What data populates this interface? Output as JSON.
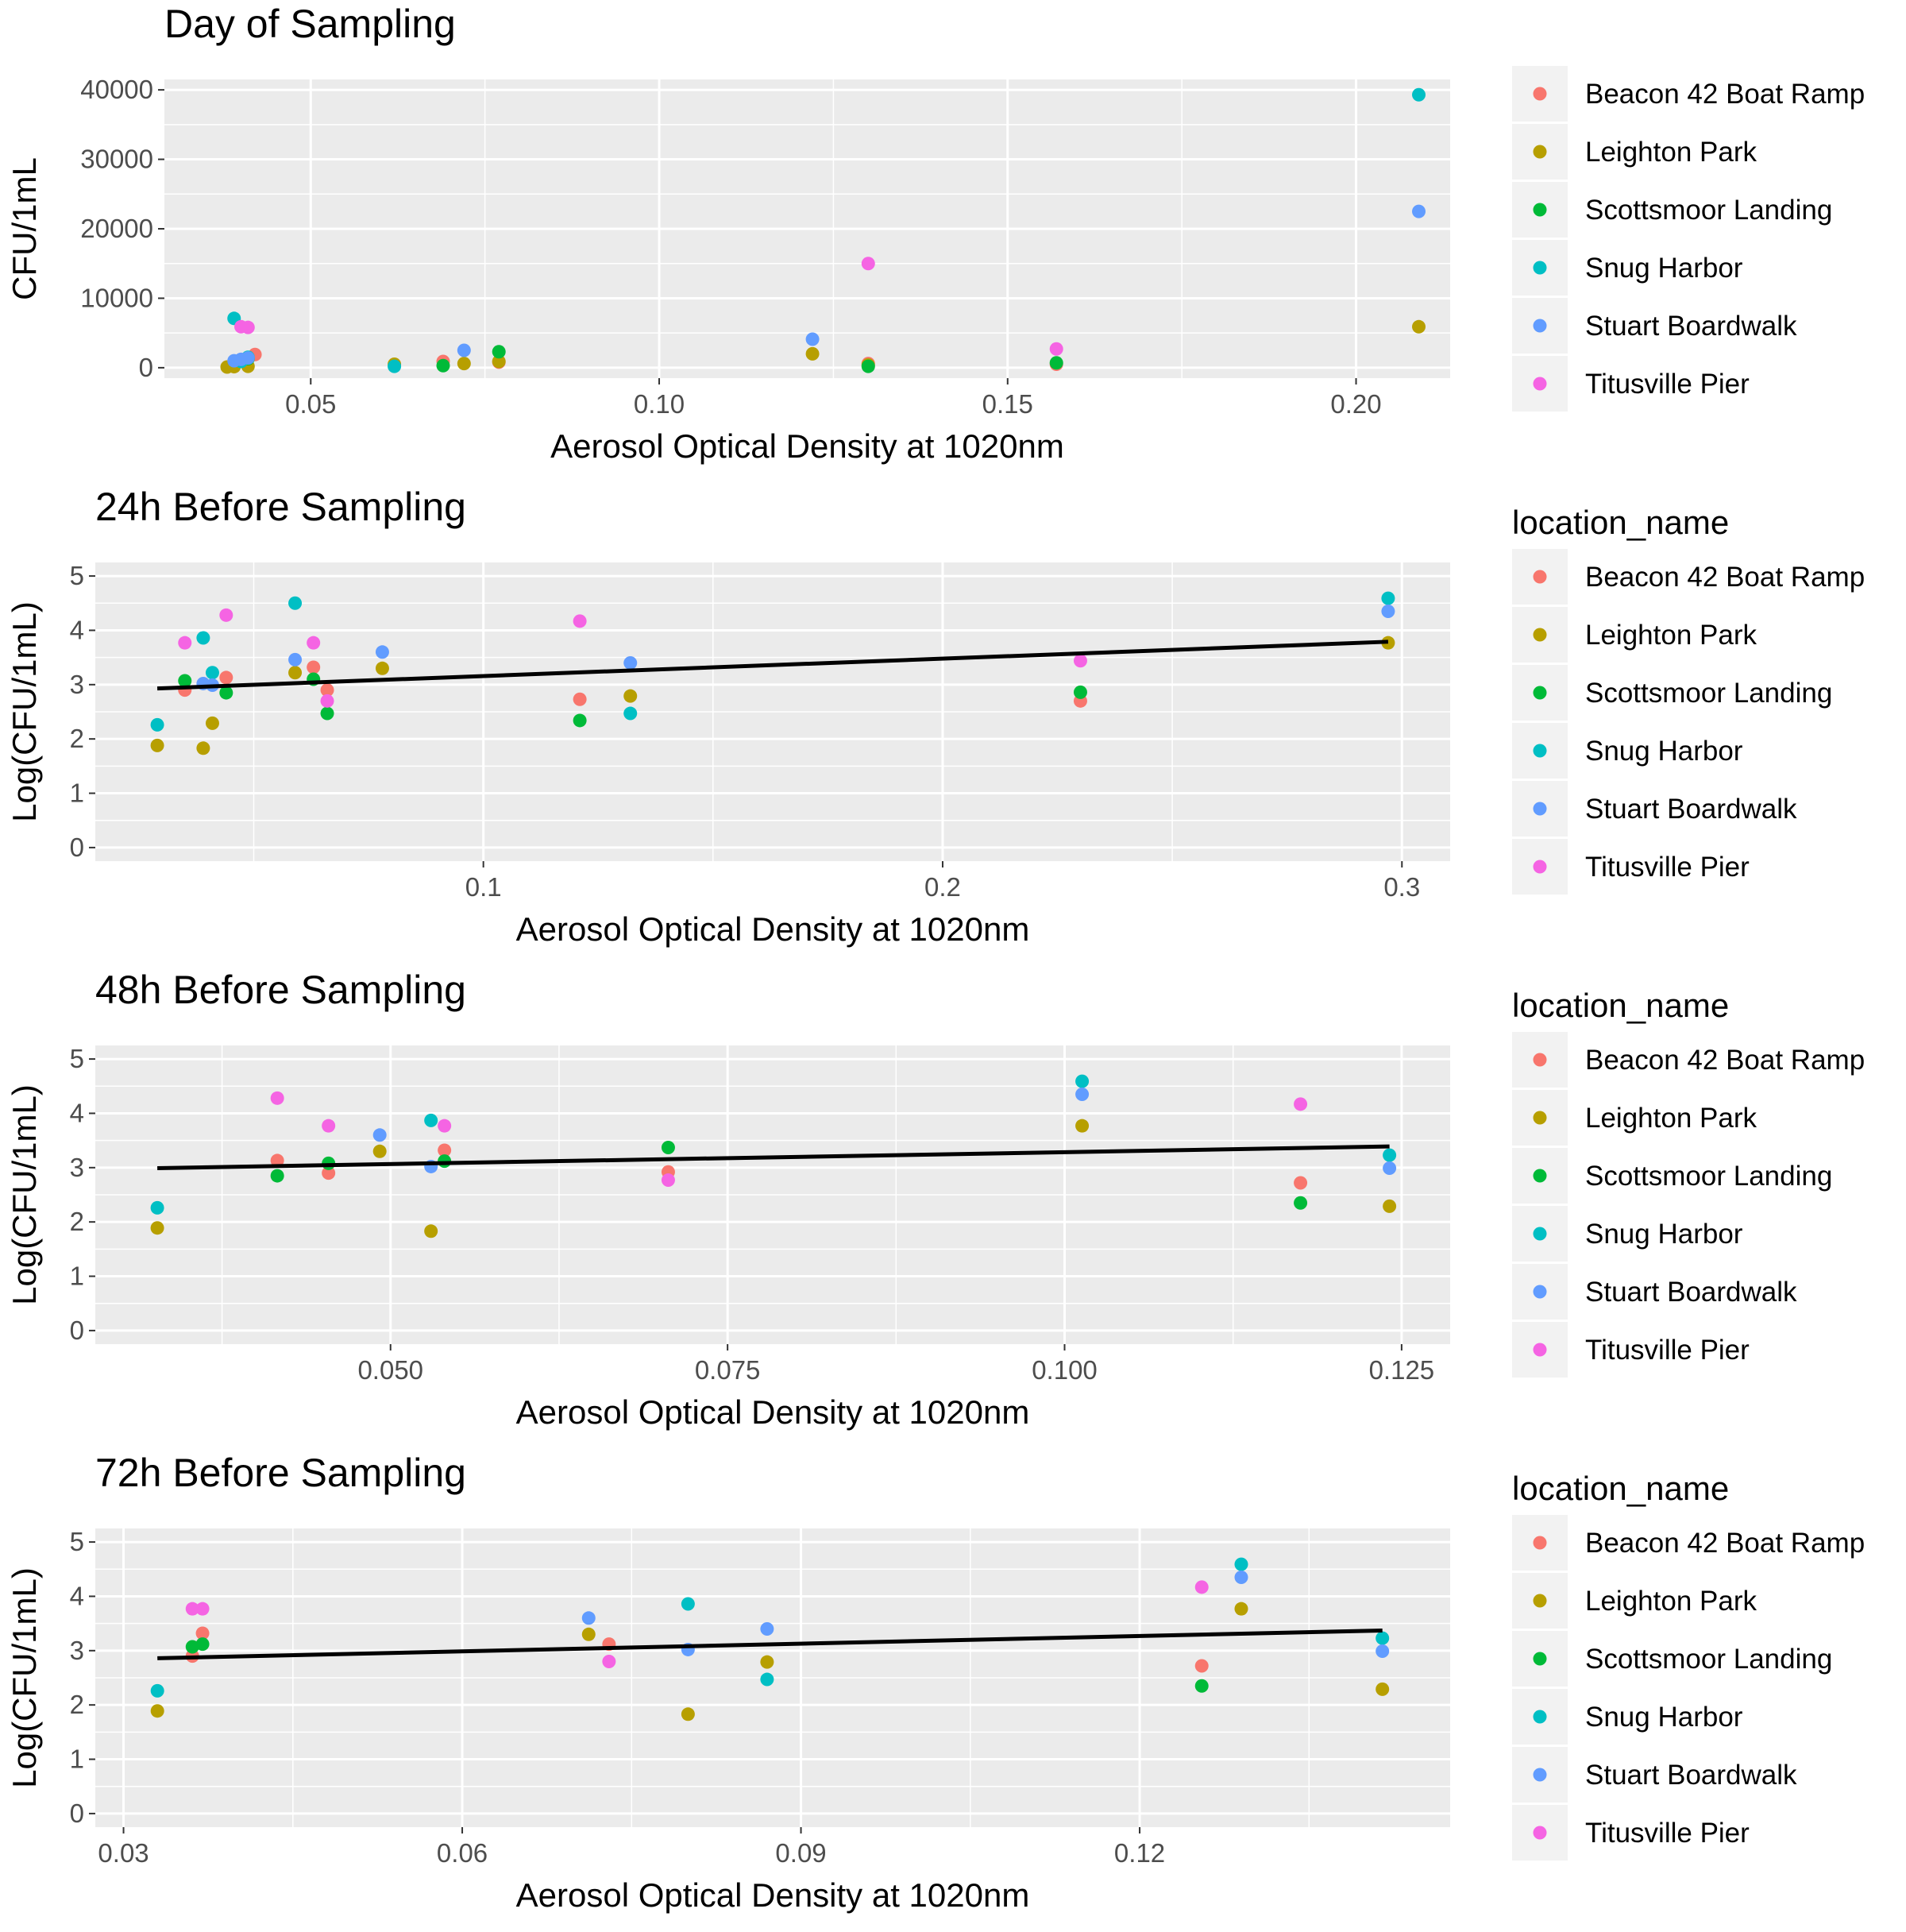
{
  "colors": {
    "Beacon 42 Boat Ramp": "#F8766D",
    "Leighton Park": "#B79F00",
    "Scottsmoor Landing": "#00BA38",
    "Snug Harbor": "#00BFC4",
    "Stuart Boardwalk": "#619CFF",
    "Titusville Pier": "#F564E3",
    "panel_background": "#EBEBEB",
    "grid": "#FFFFFF",
    "trend_line": "#000000"
  },
  "legend": {
    "title": "location_name",
    "entries": [
      "Beacon 42 Boat Ramp",
      "Leighton Park",
      "Scottsmoor Landing",
      "Snug Harbor",
      "Stuart Boardwalk",
      "Titusville Pier"
    ],
    "placement": "right"
  },
  "chart_data": [
    {
      "type": "scatter",
      "title": "Day of Sampling",
      "xlabel": "Aerosol Optical Density at 1020nm",
      "ylabel": "CFU/1mL",
      "xlim": [
        0.029,
        0.2135
      ],
      "ylim": [
        -1500,
        41500
      ],
      "xticks": [
        0.05,
        0.1,
        0.15,
        0.2
      ],
      "xtick_labels": [
        "0.05",
        "0.10",
        "0.15",
        "0.20"
      ],
      "yticks": [
        0,
        10000,
        20000,
        30000,
        40000
      ],
      "ytick_labels": [
        "0",
        "10000",
        "20000",
        "30000",
        "40000"
      ],
      "legend_title_shown": false,
      "grid": true,
      "series": [
        {
          "name": "Beacon 42 Boat Ramp",
          "points": [
            [
              0.039,
              300
            ],
            [
              0.042,
              1900
            ],
            [
              0.069,
              900
            ],
            [
              0.077,
              800
            ],
            [
              0.13,
              600
            ],
            [
              0.157,
              500
            ]
          ]
        },
        {
          "name": "Leighton Park",
          "points": [
            [
              0.038,
              100
            ],
            [
              0.039,
              150
            ],
            [
              0.041,
              200
            ],
            [
              0.062,
              500
            ],
            [
              0.072,
              600
            ],
            [
              0.077,
              900
            ],
            [
              0.122,
              2000
            ],
            [
              0.13,
              400
            ],
            [
              0.209,
              5900
            ]
          ]
        },
        {
          "name": "Scottsmoor Landing",
          "points": [
            [
              0.041,
              1300
            ],
            [
              0.069,
              300
            ],
            [
              0.077,
              2300
            ],
            [
              0.13,
              200
            ],
            [
              0.157,
              700
            ]
          ]
        },
        {
          "name": "Snug Harbor",
          "points": [
            [
              0.039,
              7100
            ],
            [
              0.04,
              900
            ],
            [
              0.041,
              1500
            ],
            [
              0.062,
              200
            ],
            [
              0.209,
              39300
            ]
          ]
        },
        {
          "name": "Stuart Boardwalk",
          "points": [
            [
              0.039,
              1000
            ],
            [
              0.04,
              1200
            ],
            [
              0.041,
              1400
            ],
            [
              0.072,
              2500
            ],
            [
              0.122,
              4100
            ],
            [
              0.209,
              22500
            ]
          ]
        },
        {
          "name": "Titusville Pier",
          "points": [
            [
              0.04,
              5900
            ],
            [
              0.041,
              5800
            ],
            [
              0.13,
              15000
            ],
            [
              0.157,
              2700
            ]
          ]
        }
      ]
    },
    {
      "type": "scatter",
      "title": "24h Before Sampling",
      "xlabel": "Aerosol Optical Density at 1020nm",
      "ylabel": "Log(CFU/1mL)",
      "xlim": [
        0.0155,
        0.3105
      ],
      "ylim": [
        -0.25,
        5.25
      ],
      "xticks": [
        0.1,
        0.2,
        0.3
      ],
      "xtick_labels": [
        "0.1",
        "0.2",
        "0.3"
      ],
      "yticks": [
        0,
        1,
        2,
        3,
        4,
        5
      ],
      "ytick_labels": [
        "0",
        "1",
        "2",
        "3",
        "4",
        "5"
      ],
      "legend_title_shown": true,
      "grid": true,
      "trend_line": [
        [
          0.029,
          2.93
        ],
        [
          0.297,
          3.79
        ]
      ],
      "series": [
        {
          "name": "Beacon 42 Boat Ramp",
          "points": [
            [
              0.035,
              2.9
            ],
            [
              0.044,
              3.13
            ],
            [
              0.063,
              3.32
            ],
            [
              0.066,
              2.9
            ],
            [
              0.121,
              2.73
            ],
            [
              0.23,
              2.7
            ]
          ]
        },
        {
          "name": "Leighton Park",
          "points": [
            [
              0.029,
              1.88
            ],
            [
              0.039,
              1.83
            ],
            [
              0.041,
              2.29
            ],
            [
              0.059,
              3.22
            ],
            [
              0.078,
              3.3
            ],
            [
              0.132,
              2.79
            ],
            [
              0.297,
              3.77
            ]
          ]
        },
        {
          "name": "Scottsmoor Landing",
          "points": [
            [
              0.035,
              3.07
            ],
            [
              0.044,
              2.85
            ],
            [
              0.063,
              3.1
            ],
            [
              0.066,
              2.47
            ],
            [
              0.121,
              2.34
            ],
            [
              0.23,
              2.86
            ]
          ]
        },
        {
          "name": "Snug Harbor",
          "points": [
            [
              0.029,
              2.26
            ],
            [
              0.039,
              3.86
            ],
            [
              0.041,
              3.22
            ],
            [
              0.059,
              4.5
            ],
            [
              0.132,
              2.47
            ],
            [
              0.297,
              4.59
            ]
          ]
        },
        {
          "name": "Stuart Boardwalk",
          "points": [
            [
              0.039,
              3.02
            ],
            [
              0.041,
              2.99
            ],
            [
              0.059,
              3.46
            ],
            [
              0.078,
              3.6
            ],
            [
              0.132,
              3.4
            ],
            [
              0.297,
              4.35
            ]
          ]
        },
        {
          "name": "Titusville Pier",
          "points": [
            [
              0.035,
              3.77
            ],
            [
              0.044,
              4.28
            ],
            [
              0.063,
              3.77
            ],
            [
              0.066,
              2.7
            ],
            [
              0.121,
              4.17
            ],
            [
              0.23,
              3.44
            ]
          ]
        }
      ]
    },
    {
      "type": "scatter",
      "title": "48h Before Sampling",
      "xlabel": "Aerosol Optical Density at 1020nm",
      "ylabel": "Log(CFU/1mL)",
      "xlim": [
        0.0281,
        0.1286
      ],
      "ylim": [
        -0.25,
        5.25
      ],
      "xticks": [
        0.05,
        0.075,
        0.1,
        0.125
      ],
      "xtick_labels": [
        "0.050",
        "0.075",
        "0.100",
        "0.125"
      ],
      "yticks": [
        0,
        1,
        2,
        3,
        4,
        5
      ],
      "ytick_labels": [
        "0",
        "1",
        "2",
        "3",
        "4",
        "5"
      ],
      "legend_title_shown": true,
      "grid": true,
      "trend_line": [
        [
          0.0327,
          2.99
        ],
        [
          0.1241,
          3.39
        ]
      ],
      "series": [
        {
          "name": "Beacon 42 Boat Ramp",
          "points": [
            [
              0.0416,
              3.13
            ],
            [
              0.0454,
              2.9
            ],
            [
              0.054,
              3.32
            ],
            [
              0.0706,
              2.92
            ],
            [
              0.1175,
              2.72
            ]
          ]
        },
        {
          "name": "Leighton Park",
          "points": [
            [
              0.0327,
              1.89
            ],
            [
              0.0492,
              3.3
            ],
            [
              0.053,
              1.83
            ],
            [
              0.1013,
              3.77
            ],
            [
              0.1241,
              2.29
            ]
          ]
        },
        {
          "name": "Scottsmoor Landing",
          "points": [
            [
              0.0416,
              2.85
            ],
            [
              0.0454,
              3.08
            ],
            [
              0.054,
              3.12
            ],
            [
              0.0706,
              3.37
            ],
            [
              0.1175,
              2.35
            ]
          ]
        },
        {
          "name": "Snug Harbor",
          "points": [
            [
              0.0327,
              2.26
            ],
            [
              0.053,
              3.87
            ],
            [
              0.1013,
              4.59
            ],
            [
              0.1241,
              3.23
            ]
          ]
        },
        {
          "name": "Stuart Boardwalk",
          "points": [
            [
              0.0492,
              3.6
            ],
            [
              0.053,
              3.02
            ],
            [
              0.1013,
              4.35
            ],
            [
              0.1241,
              2.99
            ]
          ]
        },
        {
          "name": "Titusville Pier",
          "points": [
            [
              0.0416,
              4.28
            ],
            [
              0.0454,
              3.77
            ],
            [
              0.054,
              3.77
            ],
            [
              0.0706,
              2.77
            ],
            [
              0.1175,
              4.17
            ]
          ]
        }
      ]
    },
    {
      "type": "scatter",
      "title": "72h Before Sampling",
      "xlabel": "Aerosol Optical Density at 1020nm",
      "ylabel": "Log(CFU/1mL)",
      "xlim": [
        0.0275,
        0.1475
      ],
      "ylim": [
        -0.25,
        5.25
      ],
      "xticks": [
        0.03,
        0.06,
        0.09,
        0.12
      ],
      "xtick_labels": [
        "0.03",
        "0.06",
        "0.09",
        "0.12"
      ],
      "yticks": [
        0,
        1,
        2,
        3,
        4,
        5
      ],
      "ytick_labels": [
        "0",
        "1",
        "2",
        "3",
        "4",
        "5"
      ],
      "legend_title_shown": true,
      "grid": true,
      "trend_line": [
        [
          0.033,
          2.86
        ],
        [
          0.1415,
          3.37
        ]
      ],
      "series": [
        {
          "name": "Beacon 42 Boat Ramp",
          "points": [
            [
              0.0361,
              2.9
            ],
            [
              0.037,
              3.32
            ],
            [
              0.073,
              3.12
            ],
            [
              0.1255,
              2.72
            ]
          ]
        },
        {
          "name": "Leighton Park",
          "points": [
            [
              0.033,
              1.89
            ],
            [
              0.0712,
              3.3
            ],
            [
              0.08,
              1.83
            ],
            [
              0.087,
              2.79
            ],
            [
              0.129,
              3.77
            ],
            [
              0.1415,
              2.29
            ]
          ]
        },
        {
          "name": "Scottsmoor Landing",
          "points": [
            [
              0.0361,
              3.07
            ],
            [
              0.037,
              3.12
            ],
            [
              0.1255,
              2.35
            ]
          ]
        },
        {
          "name": "Snug Harbor",
          "points": [
            [
              0.033,
              2.26
            ],
            [
              0.08,
              3.86
            ],
            [
              0.087,
              2.47
            ],
            [
              0.129,
              4.59
            ],
            [
              0.1415,
              3.23
            ]
          ]
        },
        {
          "name": "Stuart Boardwalk",
          "points": [
            [
              0.0712,
              3.6
            ],
            [
              0.08,
              3.02
            ],
            [
              0.087,
              3.4
            ],
            [
              0.129,
              4.35
            ],
            [
              0.1415,
              2.99
            ]
          ]
        },
        {
          "name": "Titusville Pier",
          "points": [
            [
              0.0361,
              3.77
            ],
            [
              0.037,
              3.77
            ],
            [
              0.073,
              2.8
            ],
            [
              0.1255,
              4.17
            ]
          ]
        }
      ]
    }
  ]
}
